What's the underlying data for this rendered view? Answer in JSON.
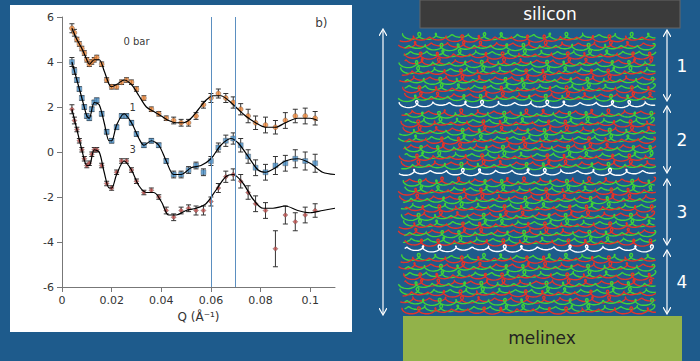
{
  "chart_data": {
    "type": "scatter",
    "title": "b)",
    "x_label": "Q (Å⁻¹)",
    "xlim": [
      0,
      0.11
    ],
    "xticks": [
      0,
      0.02,
      0.04,
      0.06,
      0.08,
      0.1
    ],
    "ylim": [
      -6,
      6
    ],
    "yticks": [
      -6,
      -4,
      -2,
      0,
      2,
      4,
      6
    ],
    "grid": false,
    "vertical_lines": [
      0.062,
      0.068
    ],
    "series": [
      {
        "name": "0 bar",
        "color": "#f08a3c",
        "marker": "circle",
        "label_at": [
          0.03,
          4.9
        ],
        "x": [
          0.004,
          0.005,
          0.006,
          0.007,
          0.008,
          0.009,
          0.01,
          0.011,
          0.012,
          0.013,
          0.014,
          0.016,
          0.018,
          0.02,
          0.022,
          0.024,
          0.026,
          0.028,
          0.03,
          0.033,
          0.036,
          0.039,
          0.042,
          0.045,
          0.048,
          0.051,
          0.054,
          0.057,
          0.06,
          0.063,
          0.066,
          0.069,
          0.072,
          0.075,
          0.078,
          0.082,
          0.086,
          0.09,
          0.094,
          0.098,
          0.102
        ],
        "values": [
          5.5,
          5.3,
          5.0,
          4.8,
          4.6,
          4.4,
          4.1,
          3.9,
          4.0,
          4.1,
          4.2,
          3.9,
          3.2,
          2.9,
          2.9,
          3.1,
          3.2,
          3.1,
          2.8,
          2.4,
          1.9,
          1.7,
          1.5,
          1.4,
          1.3,
          1.3,
          1.6,
          2.1,
          2.4,
          2.6,
          2.4,
          2.2,
          1.9,
          1.6,
          1.3,
          1.2,
          1.1,
          1.4,
          1.6,
          1.6,
          1.5
        ],
        "errors": [
          0.2,
          0.15,
          0.1,
          0.1,
          0.1,
          0.1,
          0.1,
          0.1,
          0.1,
          0.1,
          0.1,
          0.1,
          0.1,
          0.1,
          0.1,
          0.1,
          0.1,
          0.1,
          0.1,
          0.1,
          0.1,
          0.1,
          0.1,
          0.15,
          0.15,
          0.15,
          0.15,
          0.15,
          0.2,
          0.2,
          0.2,
          0.25,
          0.25,
          0.3,
          0.3,
          0.35,
          0.3,
          0.35,
          0.3,
          0.35,
          0.3
        ],
        "fit_x": [
          0.004,
          0.006,
          0.008,
          0.01,
          0.011,
          0.013,
          0.015,
          0.017,
          0.019,
          0.02,
          0.022,
          0.025,
          0.028,
          0.031,
          0.034,
          0.037,
          0.04,
          0.043,
          0.046,
          0.049,
          0.052,
          0.055,
          0.058,
          0.061,
          0.064,
          0.067,
          0.07,
          0.074,
          0.078,
          0.082,
          0.086,
          0.09,
          0.095,
          0.1,
          0.103
        ],
        "fit_values": [
          5.5,
          5.0,
          4.6,
          4.1,
          3.9,
          4.1,
          4.1,
          3.6,
          3.0,
          2.9,
          3.0,
          3.2,
          3.0,
          2.5,
          2.0,
          1.8,
          1.6,
          1.4,
          1.3,
          1.3,
          1.5,
          1.9,
          2.3,
          2.5,
          2.5,
          2.3,
          2.0,
          1.6,
          1.3,
          1.1,
          1.1,
          1.3,
          1.5,
          1.5,
          1.4
        ]
      },
      {
        "name": "1",
        "color": "#4a90c8",
        "marker": "rect",
        "label_at": [
          0.0285,
          2.0
        ],
        "x": [
          0.004,
          0.005,
          0.006,
          0.007,
          0.008,
          0.009,
          0.01,
          0.011,
          0.012,
          0.013,
          0.014,
          0.016,
          0.018,
          0.02,
          0.022,
          0.024,
          0.026,
          0.028,
          0.03,
          0.033,
          0.036,
          0.039,
          0.042,
          0.045,
          0.048,
          0.051,
          0.054,
          0.057,
          0.06,
          0.063,
          0.066,
          0.069,
          0.072,
          0.075,
          0.078,
          0.082,
          0.086,
          0.09,
          0.094,
          0.098,
          0.102
        ],
        "values": [
          4.0,
          3.6,
          3.2,
          2.8,
          2.4,
          2.0,
          1.6,
          1.5,
          1.9,
          2.2,
          2.3,
          1.7,
          0.9,
          0.5,
          1.1,
          1.6,
          1.6,
          1.3,
          0.8,
          0.3,
          0.5,
          0.3,
          -0.4,
          -1.0,
          -1.0,
          -0.8,
          -0.6,
          -0.9,
          -0.4,
          0.2,
          0.5,
          0.6,
          0.3,
          -0.2,
          -0.7,
          -0.9,
          -0.6,
          -0.5,
          -0.3,
          -0.4,
          -0.5
        ],
        "errors": [
          0.2,
          0.15,
          0.1,
          0.1,
          0.1,
          0.1,
          0.1,
          0.1,
          0.1,
          0.1,
          0.1,
          0.1,
          0.1,
          0.1,
          0.1,
          0.1,
          0.1,
          0.1,
          0.1,
          0.1,
          0.1,
          0.1,
          0.1,
          0.15,
          0.15,
          0.15,
          0.15,
          0.15,
          0.2,
          0.2,
          0.25,
          0.25,
          0.3,
          0.3,
          0.35,
          0.35,
          0.4,
          0.35,
          0.4,
          0.4,
          0.4
        ],
        "fit_x": [
          0.004,
          0.006,
          0.008,
          0.01,
          0.011,
          0.013,
          0.015,
          0.017,
          0.019,
          0.02,
          0.022,
          0.025,
          0.028,
          0.031,
          0.033,
          0.036,
          0.039,
          0.042,
          0.045,
          0.048,
          0.052,
          0.056,
          0.06,
          0.064,
          0.068,
          0.071,
          0.075,
          0.079,
          0.082,
          0.086,
          0.09,
          0.095,
          0.1,
          0.105,
          0.11
        ],
        "fit_values": [
          4.0,
          3.2,
          2.4,
          1.6,
          1.5,
          2.2,
          2.1,
          1.3,
          0.5,
          0.5,
          1.2,
          1.7,
          1.3,
          0.6,
          0.3,
          0.5,
          0.3,
          -0.4,
          -1.0,
          -1.0,
          -0.7,
          -0.6,
          -0.3,
          0.3,
          0.6,
          0.4,
          -0.2,
          -0.8,
          -0.9,
          -0.7,
          -0.4,
          -0.3,
          -0.5,
          -0.9,
          -1.0
        ]
      },
      {
        "name": "3",
        "color": "#c0504d",
        "marker": "diamond",
        "label_at": [
          0.0285,
          0.1
        ],
        "x": [
          0.004,
          0.005,
          0.006,
          0.007,
          0.008,
          0.009,
          0.01,
          0.011,
          0.012,
          0.013,
          0.014,
          0.016,
          0.018,
          0.02,
          0.022,
          0.024,
          0.026,
          0.028,
          0.03,
          0.033,
          0.036,
          0.039,
          0.042,
          0.045,
          0.048,
          0.051,
          0.054,
          0.057,
          0.06,
          0.063,
          0.066,
          0.069,
          0.072,
          0.075,
          0.078,
          0.082,
          0.086,
          0.09,
          0.094,
          0.098,
          0.102
        ],
        "values": [
          1.9,
          1.4,
          1.0,
          0.5,
          0.1,
          -0.3,
          -0.6,
          -0.5,
          -0.1,
          0.1,
          0.1,
          -0.6,
          -1.4,
          -1.6,
          -0.9,
          -0.4,
          -0.4,
          -0.8,
          -1.3,
          -1.8,
          -1.7,
          -2.0,
          -2.6,
          -2.9,
          -2.6,
          -2.5,
          -2.6,
          -2.6,
          -2.2,
          -1.6,
          -1.1,
          -1.0,
          -1.3,
          -1.8,
          -2.3,
          -2.6,
          -4.3,
          -2.8,
          -3.1,
          -2.8,
          -2.6
        ],
        "errors": [
          0.2,
          0.15,
          0.1,
          0.1,
          0.1,
          0.1,
          0.1,
          0.1,
          0.1,
          0.1,
          0.1,
          0.1,
          0.1,
          0.1,
          0.1,
          0.1,
          0.1,
          0.1,
          0.1,
          0.1,
          0.1,
          0.1,
          0.15,
          0.15,
          0.15,
          0.15,
          0.2,
          0.2,
          0.2,
          0.2,
          0.25,
          0.25,
          0.3,
          0.3,
          0.35,
          0.35,
          0.8,
          0.4,
          0.4,
          0.35,
          0.3
        ],
        "fit_x": [
          0.004,
          0.006,
          0.008,
          0.01,
          0.011,
          0.013,
          0.015,
          0.017,
          0.019,
          0.02,
          0.022,
          0.025,
          0.028,
          0.031,
          0.034,
          0.037,
          0.04,
          0.043,
          0.046,
          0.05,
          0.054,
          0.058,
          0.062,
          0.066,
          0.069,
          0.073,
          0.077,
          0.081,
          0.085,
          0.09,
          0.095,
          0.1,
          0.105,
          0.11
        ],
        "fit_values": [
          1.9,
          1.0,
          0.1,
          -0.6,
          -0.6,
          0.1,
          0.0,
          -0.9,
          -1.6,
          -1.6,
          -1.0,
          -0.4,
          -0.8,
          -1.5,
          -1.8,
          -1.8,
          -2.2,
          -2.8,
          -2.8,
          -2.6,
          -2.5,
          -2.3,
          -1.7,
          -1.1,
          -1.0,
          -1.4,
          -2.1,
          -2.5,
          -2.5,
          -2.4,
          -2.6,
          -2.7,
          -2.6,
          -2.5
        ]
      }
    ],
    "title_at": [
      0.1045,
      5.75
    ]
  },
  "diagram": {
    "top": "silicon",
    "bottom": "melinex",
    "layers": [
      "1",
      "2",
      "3",
      "4"
    ]
  }
}
